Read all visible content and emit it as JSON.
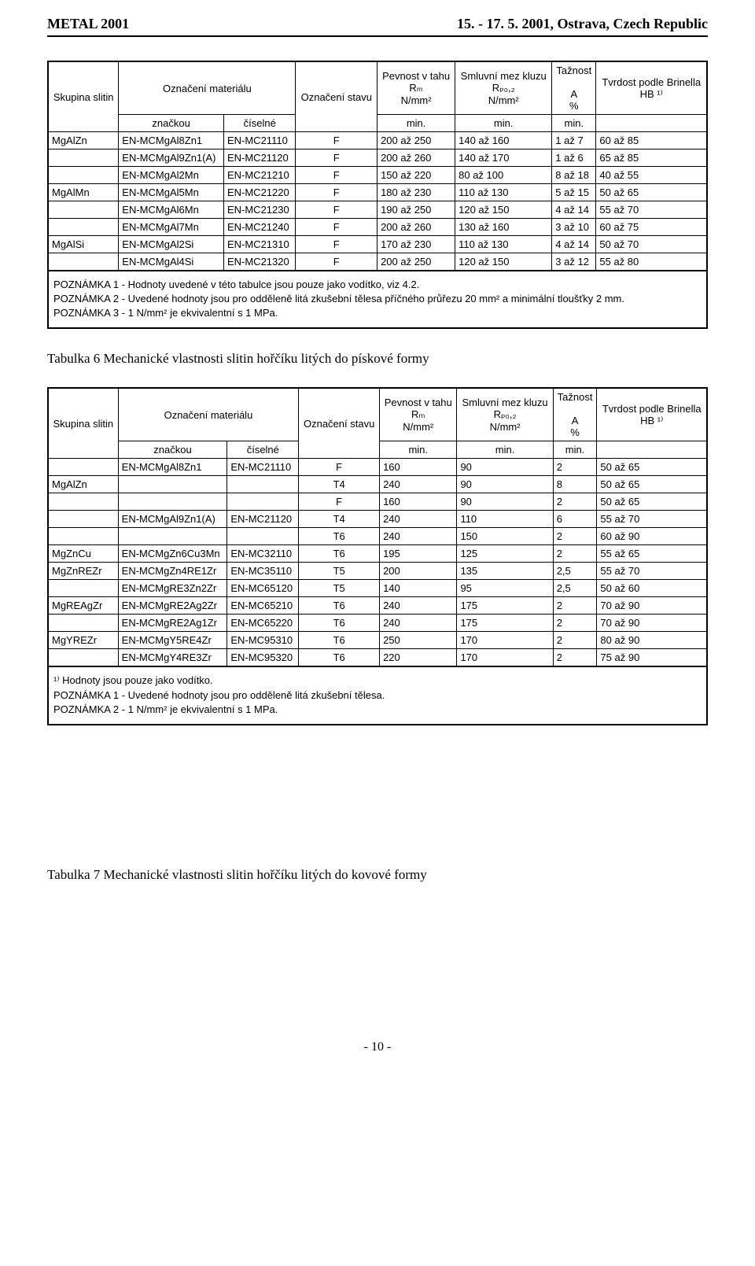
{
  "header": {
    "left": "METAL 2001",
    "right": "15. - 17. 5. 2001, Ostrava, Czech Republic"
  },
  "table1": {
    "headers": {
      "group": "Skupina slitin",
      "material": "Označení materiálu",
      "markCol": "značkou",
      "numCol": "číselné",
      "state": "Označení stavu",
      "tension": "Pevnost v tahu",
      "tensionSym": "Rₘ",
      "tensionUnit": "N/mm²",
      "yield": "Smluvní mez kluzu",
      "yieldSym": "Rₚ₀,₂",
      "yieldUnit": "N/mm²",
      "elong": "Tažnost",
      "elongSym": "A",
      "elongUnit": "%",
      "hard": "Tvrdost podle Brinella",
      "hardSym": "HB ¹⁾",
      "min": "min."
    },
    "rows": [
      {
        "group": "MgAlZn",
        "mark": "EN-MCMgAl8Zn1",
        "num": "EN-MC21110",
        "state": "F",
        "rm": "200 až 250",
        "rp": "140 až 160",
        "a": "1 až 7",
        "hb": "60 až 85"
      },
      {
        "group": "",
        "mark": "EN-MCMgAl9Zn1(A)",
        "num": "EN-MC21120",
        "state": "F",
        "rm": "200 až 260",
        "rp": "140 až 170",
        "a": "1 až 6",
        "hb": "65 až 85"
      },
      {
        "group": "",
        "mark": "EN-MCMgAl2Mn",
        "num": "EN-MC21210",
        "state": "F",
        "rm": "150 až 220",
        "rp": "80 až 100",
        "a": "8 až 18",
        "hb": "40 až 55"
      },
      {
        "group": "MgAlMn",
        "mark": "EN-MCMgAl5Mn",
        "num": "EN-MC21220",
        "state": "F",
        "rm": "180 až 230",
        "rp": "110 až 130",
        "a": "5 až 15",
        "hb": "50 až 65"
      },
      {
        "group": "",
        "mark": "EN-MCMgAl6Mn",
        "num": "EN-MC21230",
        "state": "F",
        "rm": "190 až 250",
        "rp": "120 až 150",
        "a": "4 až 14",
        "hb": "55 až 70"
      },
      {
        "group": "",
        "mark": "EN-MCMgAl7Mn",
        "num": "EN-MC21240",
        "state": "F",
        "rm": "200 až 260",
        "rp": "130 až 160",
        "a": "3 až 10",
        "hb": "60 až 75"
      },
      {
        "group": "MgAlSi",
        "mark": "EN-MCMgAl2Si",
        "num": "EN-MC21310",
        "state": "F",
        "rm": "170 až 230",
        "rp": "110 až 130",
        "a": "4 až 14",
        "hb": "50 až 70"
      },
      {
        "group": "",
        "mark": "EN-MCMgAl4Si",
        "num": "EN-MC21320",
        "state": "F",
        "rm": "200 až 250",
        "rp": "120 až 150",
        "a": "3 až 12",
        "hb": "55 až 80"
      }
    ],
    "notes": {
      "n1": "POZNÁMKA 1 - Hodnoty uvedené v této tabulce jsou pouze jako vodítko, viz 4.2.",
      "n2": "POZNÁMKA 2 - Uvedené hodnoty jsou pro odděleně litá zkušební tělesa příčného průřezu 20 mm² a minimální tloušťky 2 mm.",
      "n3": "POZNÁMKA 3 - 1 N/mm² je ekvivalentní s 1 MPa."
    }
  },
  "caption6": "Tabulka 6  Mechanické vlastnosti slitin hořčíku litých do pískové formy",
  "table2": {
    "headers": {
      "group": "Skupina slitin",
      "material": "Označení materiálu",
      "markCol": "značkou",
      "numCol": "číselné",
      "state": "Označení stavu",
      "tension": "Pevnost v tahu",
      "tensionSym": "Rₘ",
      "tensionUnit": "N/mm²",
      "yield": "Smluvní mez kluzu",
      "yieldSym": "Rₚ₀,₂",
      "yieldUnit": "N/mm²",
      "elong": "Tažnost",
      "elongSym": "A",
      "elongUnit": "%",
      "hard": "Tvrdost podle Brinella",
      "hardSym": "HB ¹⁾",
      "min": "min."
    },
    "rows": [
      {
        "group": "",
        "mark": "EN-MCMgAl8Zn1",
        "num": "EN-MC21110",
        "state": "F",
        "rm": "160",
        "rp": "90",
        "a": "2",
        "hb": "50 až 65"
      },
      {
        "group": "MgAlZn",
        "mark": "",
        "num": "",
        "state": "T4",
        "rm": "240",
        "rp": "90",
        "a": "8",
        "hb": "50 až 65"
      },
      {
        "group": "",
        "mark": "",
        "num": "",
        "state": "F",
        "rm": "160",
        "rp": "90",
        "a": "2",
        "hb": "50 až 65"
      },
      {
        "group": "",
        "mark": "EN-MCMgAl9Zn1(A)",
        "num": "EN-MC21120",
        "state": "T4",
        "rm": "240",
        "rp": "110",
        "a": "6",
        "hb": "55 až 70"
      },
      {
        "group": "",
        "mark": "",
        "num": "",
        "state": "T6",
        "rm": "240",
        "rp": "150",
        "a": "2",
        "hb": "60 až 90"
      },
      {
        "group": "MgZnCu",
        "mark": "EN-MCMgZn6Cu3Mn",
        "num": "EN-MC32110",
        "state": "T6",
        "rm": "195",
        "rp": "125",
        "a": "2",
        "hb": "55 až 65"
      },
      {
        "group": "MgZnREZr",
        "mark": "EN-MCMgZn4RE1Zr",
        "num": "EN-MC35110",
        "state": "T5",
        "rm": "200",
        "rp": "135",
        "a": "2,5",
        "hb": "55 až 70"
      },
      {
        "group": "",
        "mark": "EN-MCMgRE3Zn2Zr",
        "num": "EN-MC65120",
        "state": "T5",
        "rm": "140",
        "rp": "95",
        "a": "2,5",
        "hb": "50 až 60"
      },
      {
        "group": "MgREAgZr",
        "mark": "EN-MCMgRE2Ag2Zr",
        "num": "EN-MC65210",
        "state": "T6",
        "rm": "240",
        "rp": "175",
        "a": "2",
        "hb": "70 až 90"
      },
      {
        "group": "",
        "mark": "EN-MCMgRE2Ag1Zr",
        "num": "EN-MC65220",
        "state": "T6",
        "rm": "240",
        "rp": "175",
        "a": "2",
        "hb": "70 až 90"
      },
      {
        "group": "MgYREZr",
        "mark": "EN-MCMgY5RE4Zr",
        "num": "EN-MC95310",
        "state": "T6",
        "rm": "250",
        "rp": "170",
        "a": "2",
        "hb": "80 až 90"
      },
      {
        "group": "",
        "mark": "EN-MCMgY4RE3Zr",
        "num": "EN-MC95320",
        "state": "T6",
        "rm": "220",
        "rp": "170",
        "a": "2",
        "hb": "75 až 90"
      }
    ],
    "notes": {
      "n0": "¹⁾  Hodnoty jsou pouze jako vodítko.",
      "n1": "POZNÁMKA 1 - Uvedené hodnoty jsou pro odděleně litá zkušební tělesa.",
      "n2": "POZNÁMKA 2 - 1 N/mm² je ekvivalentní s 1 MPa."
    }
  },
  "caption7": "Tabulka 7  Mechanické vlastnosti slitin hořčíku litých do kovové formy",
  "pageNumber": "- 10 -"
}
